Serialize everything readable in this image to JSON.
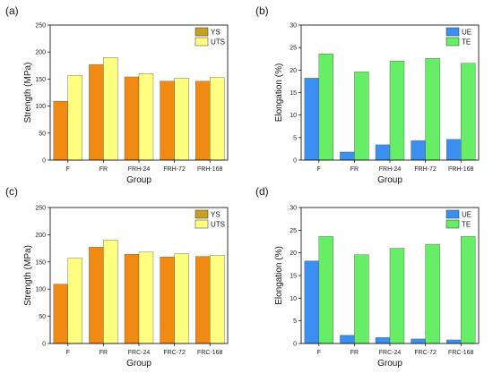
{
  "chart_data": [
    {
      "type": "bar",
      "panel_label": "(a)",
      "xlabel": "Group",
      "ylabel": "Strength (MPa)",
      "ylim": [
        0,
        250
      ],
      "yticks": [
        "0",
        "50",
        "100",
        "150",
        "200",
        "250"
      ],
      "categories": [
        "F",
        "FR",
        "FRH-24",
        "FRH-72",
        "FRH-168"
      ],
      "series": [
        {
          "name": "YS",
          "values": [
            109,
            177,
            154,
            146,
            146
          ],
          "color": "#f08a10"
        },
        {
          "name": "UTS",
          "values": [
            157,
            190,
            160,
            152,
            153
          ],
          "color": "#ffff80"
        }
      ],
      "legend": "top-right",
      "legend_swatches": [
        "#c8a020",
        "#ffff80"
      ],
      "grid": false
    },
    {
      "type": "bar",
      "panel_label": "(b)",
      "xlabel": "Group",
      "ylabel": "Elongation (%)",
      "ylim": [
        0,
        30
      ],
      "yticks": [
        "0",
        "5",
        "10",
        "15",
        "20",
        "25",
        "30"
      ],
      "categories": [
        "F",
        "FR",
        "FRH-24",
        "FRH-72",
        "FRH-168"
      ],
      "series": [
        {
          "name": "UE",
          "values": [
            18.2,
            1.8,
            3.4,
            4.3,
            4.6
          ],
          "color": "#3a8ff0"
        },
        {
          "name": "TE",
          "values": [
            23.6,
            19.6,
            22.0,
            22.6,
            21.5
          ],
          "color": "#66ee66"
        }
      ],
      "legend": "top-right",
      "legend_swatches": [
        "#3a8ff0",
        "#66ee66"
      ],
      "grid": false
    },
    {
      "type": "bar",
      "panel_label": "(c)",
      "xlabel": "Group",
      "ylabel": "Strength (MPa)",
      "ylim": [
        0,
        250
      ],
      "yticks": [
        "0",
        "50",
        "100",
        "150",
        "200",
        "250"
      ],
      "categories": [
        "F",
        "FR",
        "FRC-24",
        "FRC-72",
        "FRC-168"
      ],
      "series": [
        {
          "name": "YS",
          "values": [
            109,
            177,
            164,
            159,
            160
          ],
          "color": "#f08a10"
        },
        {
          "name": "UTS",
          "values": [
            157,
            190,
            168,
            165,
            162
          ],
          "color": "#ffff80"
        }
      ],
      "legend": "top-right",
      "legend_swatches": [
        "#c8a020",
        "#ffff80"
      ],
      "grid": false
    },
    {
      "type": "bar",
      "panel_label": "(d)",
      "xlabel": "Group",
      "ylabel": "Elongation (%)",
      "ylim": [
        0,
        30
      ],
      "yticks": [
        "0",
        "5",
        "10",
        "15",
        "20",
        "25",
        "30"
      ],
      "categories": [
        "F",
        "FR",
        "FRC-24",
        "FRC-72",
        "FRC-168"
      ],
      "series": [
        {
          "name": "UE",
          "values": [
            18.2,
            1.8,
            1.3,
            1.0,
            0.8
          ],
          "color": "#3a8ff0"
        },
        {
          "name": "TE",
          "values": [
            23.6,
            19.6,
            21.0,
            21.9,
            23.6
          ],
          "color": "#66ee66"
        }
      ],
      "legend": "top-right",
      "legend_swatches": [
        "#3a8ff0",
        "#66ee66"
      ],
      "grid": false
    }
  ]
}
